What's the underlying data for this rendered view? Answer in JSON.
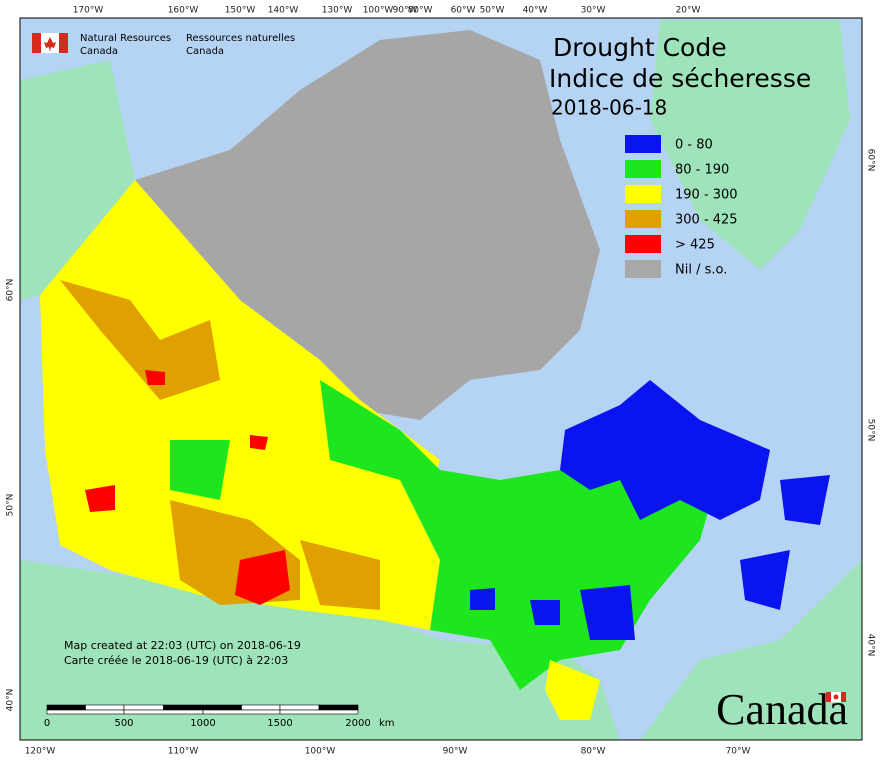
{
  "header": {
    "agency_en": [
      "Natural Resources",
      "Canada"
    ],
    "agency_fr": [
      "Ressources naturelles",
      "Canada"
    ]
  },
  "title": {
    "en": "Drought Code",
    "fr": "Indice de sécheresse",
    "date": "2018-06-18"
  },
  "legend": [
    {
      "label": "0 - 80",
      "color": "#0a14f0"
    },
    {
      "label": "80 - 190",
      "color": "#1ee61e"
    },
    {
      "label": "190 - 300",
      "color": "#ffff00"
    },
    {
      "label": "300 - 425",
      "color": "#e0a000"
    },
    {
      "label": "> 425",
      "color": "#ff0000"
    },
    {
      "label": "Nil / s.o.",
      "color": "#a8a8a8"
    }
  ],
  "credits": [
    "Map created at 22:03 (UTC) on 2018-06-19",
    "Carte créée le 2018-06-19 (UTC) à 22:03"
  ],
  "wordmark": "Canada",
  "graticule": {
    "top": [
      "170°W",
      "160°W",
      "150°W",
      "140°W",
      "130°W",
      "100°W",
      "90°W",
      "80°W",
      "60°W",
      "50°W",
      "40°W",
      "30°W",
      "20°W"
    ],
    "bottom": [
      "120°W",
      "110°W",
      "100°W",
      "90°W",
      "80°W",
      "70°W"
    ],
    "left": [
      "60°N",
      "50°N",
      "40°N"
    ],
    "right": [
      "60°N",
      "50°N",
      "40°N"
    ]
  },
  "scale_bar": {
    "labels": [
      "0",
      "500",
      "1000",
      "1500",
      "2000"
    ],
    "unit": "km"
  }
}
